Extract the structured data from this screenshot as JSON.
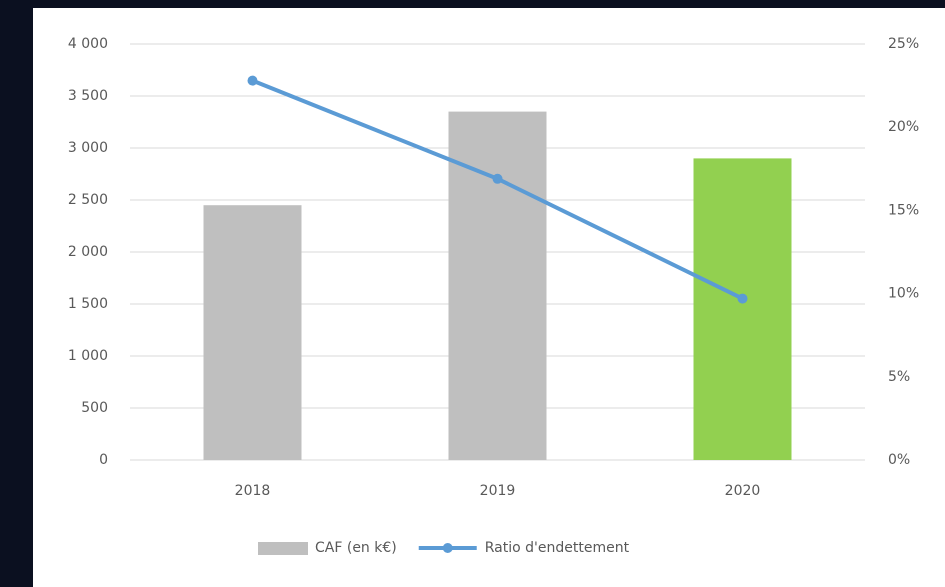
{
  "chart_data": {
    "type": "bar-line",
    "categories": [
      "2018",
      "2019",
      "2020"
    ],
    "series": [
      {
        "name": "CAF (en k€)",
        "type": "bar",
        "color": "#bfbfbf",
        "colors": [
          "#bfbfbf",
          "#bfbfbf",
          "#92d050"
        ],
        "values": [
          2450,
          3350,
          2900
        ]
      },
      {
        "name": "Ratio d'endettement",
        "type": "line",
        "axis": "y2",
        "color": "#5b9bd5",
        "values": [
          22.8,
          16.9,
          9.7
        ]
      }
    ],
    "ylim": [
      0,
      4000
    ],
    "yticks": [
      {
        "value": 0,
        "label": "0"
      },
      {
        "value": 500,
        "label": "500"
      },
      {
        "value": 1000,
        "label": "1 000"
      },
      {
        "value": 1500,
        "label": "1 500"
      },
      {
        "value": 2000,
        "label": "2 000"
      },
      {
        "value": 2500,
        "label": "2 500"
      },
      {
        "value": 3000,
        "label": "3 000"
      },
      {
        "value": 3500,
        "label": "3 500"
      },
      {
        "value": 4000,
        "label": "4 000"
      }
    ],
    "y2lim": [
      0,
      25
    ],
    "y2ticks": [
      {
        "value": 0,
        "label": "0%"
      },
      {
        "value": 5,
        "label": "5%"
      },
      {
        "value": 10,
        "label": "10%"
      },
      {
        "value": 15,
        "label": "15%"
      },
      {
        "value": 20,
        "label": "20%"
      },
      {
        "value": 25,
        "label": "25%"
      }
    ],
    "grid": true,
    "legend": "bottom"
  }
}
